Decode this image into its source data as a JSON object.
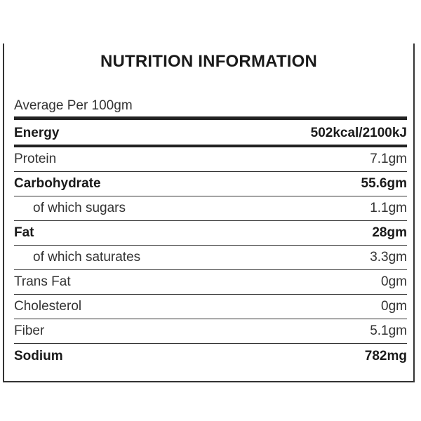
{
  "title": "NUTRITION INFORMATION",
  "subtitle": "Average Per 100gm",
  "rows": [
    {
      "name": "Energy",
      "value": "502kcal/2100kJ"
    },
    {
      "name": "Protein",
      "value": "7.1gm"
    },
    {
      "name": "Carbohydrate",
      "value": "55.6gm"
    },
    {
      "name": "of which sugars",
      "value": "1.1gm"
    },
    {
      "name": "Fat",
      "value": "28gm"
    },
    {
      "name": "of which saturates",
      "value": "3.3gm"
    },
    {
      "name": "Trans Fat",
      "value": "0gm"
    },
    {
      "name": "Cholesterol",
      "value": "0gm"
    },
    {
      "name": "Fiber",
      "value": "5.1gm"
    },
    {
      "name": "Sodium",
      "value": "782mg"
    }
  ]
}
